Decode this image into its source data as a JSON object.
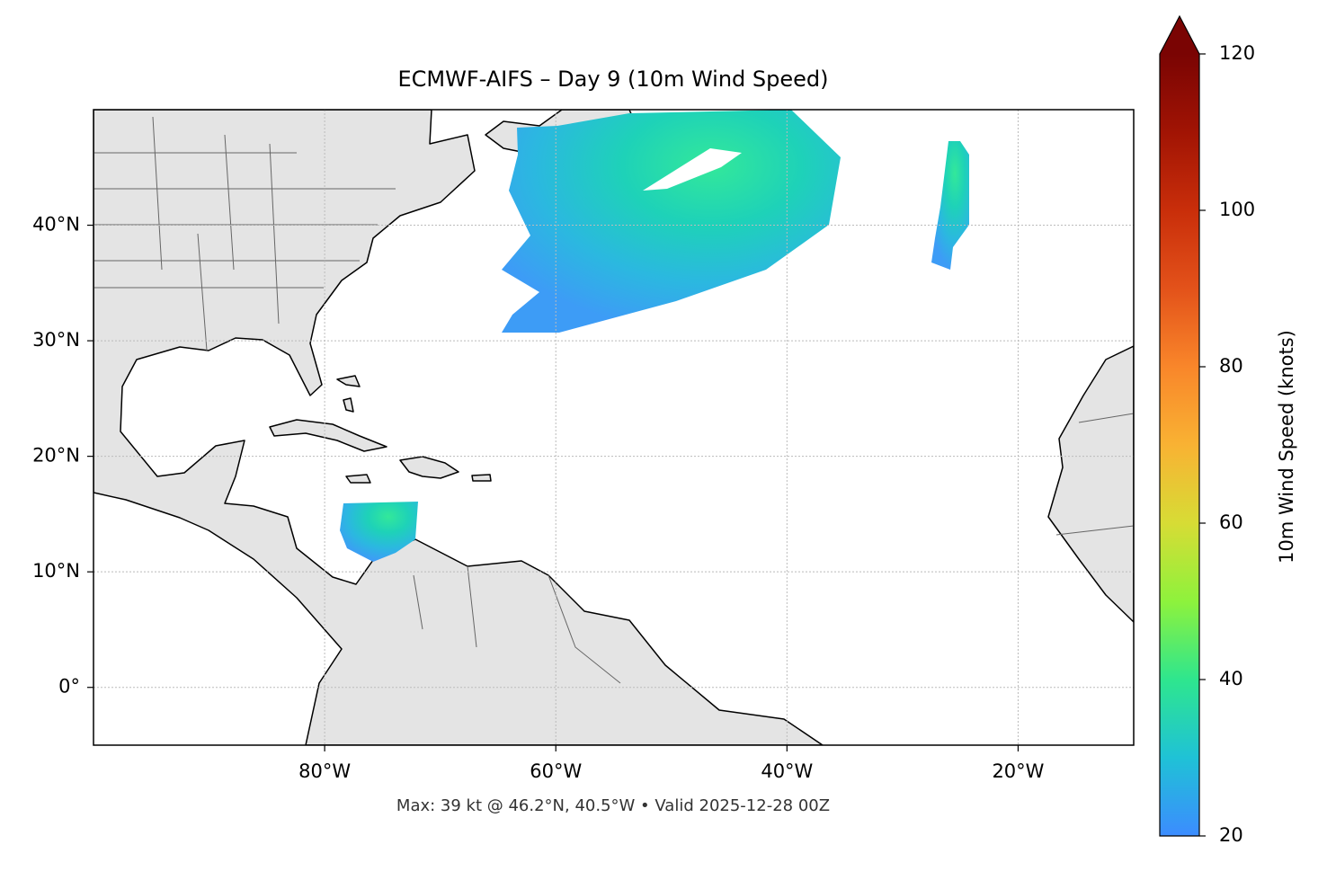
{
  "map": {
    "title": "ECMWF-AIFS – Day 9 (10m Wind Speed)",
    "footer": "Max: 39 kt @ 46.2°N, 40.5°W • Valid 2025-12-28 00Z",
    "xlim": [
      -100,
      -10
    ],
    "ylim": [
      -5,
      50
    ],
    "xticks": [
      {
        "value": -80,
        "label": "80°W"
      },
      {
        "value": -60,
        "label": "60°W"
      },
      {
        "value": -40,
        "label": "40°W"
      },
      {
        "value": -20,
        "label": "20°W"
      }
    ],
    "yticks": [
      {
        "value": 0,
        "label": "0°"
      },
      {
        "value": 10,
        "label": "10°N"
      },
      {
        "value": 20,
        "label": "20°N"
      },
      {
        "value": 30,
        "label": "30°N"
      },
      {
        "value": 40,
        "label": "40°N"
      }
    ],
    "grid": true,
    "colorbar": {
      "label": "10m Wind Speed (knots)",
      "lim": [
        20,
        120
      ],
      "ticks": [
        20,
        40,
        60,
        80,
        100,
        120
      ]
    }
  }
}
